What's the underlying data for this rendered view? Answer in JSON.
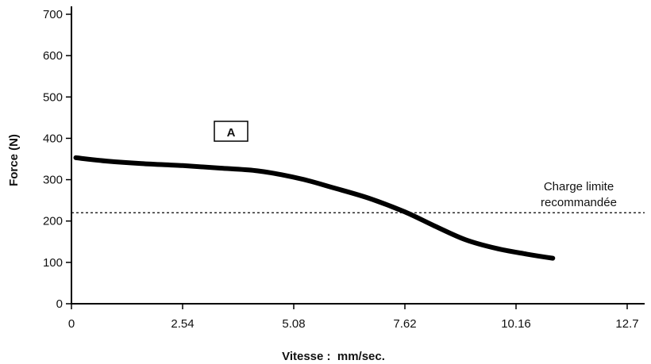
{
  "chart_data": {
    "type": "line",
    "title": "",
    "xlabel": "Vitesse :  mm/sec.",
    "ylabel": "Force (N)",
    "xlim": [
      0,
      12.7
    ],
    "ylim": [
      0,
      700
    ],
    "x_ticks": [
      0,
      2.54,
      5.08,
      7.62,
      10.16,
      12.7
    ],
    "x_tick_labels": [
      "0",
      "2.54",
      "5.08",
      "7.62",
      "10.16",
      "12.7"
    ],
    "y_ticks": [
      0,
      100,
      200,
      300,
      400,
      500,
      600,
      700
    ],
    "y_tick_labels": [
      "0",
      "100",
      "200",
      "300",
      "400",
      "500",
      "600",
      "700"
    ],
    "grid": false,
    "series": [
      {
        "name": "A",
        "x": [
          0.1,
          0.8,
          1.6,
          2.54,
          3.4,
          4.2,
          4.8,
          5.4,
          6.0,
          6.8,
          7.62,
          8.3,
          9.0,
          9.7,
          10.4,
          11.0
        ],
        "y": [
          353,
          345,
          339,
          334,
          328,
          322,
          312,
          298,
          280,
          255,
          222,
          188,
          155,
          134,
          120,
          110
        ]
      }
    ],
    "reference_line": {
      "y": 220,
      "label_line1": "Charge limite",
      "label_line2": "recommandée"
    },
    "series_box_label": "A",
    "colors": {
      "line": "#000000",
      "axis": "#000000",
      "background": "#ffffff"
    }
  }
}
